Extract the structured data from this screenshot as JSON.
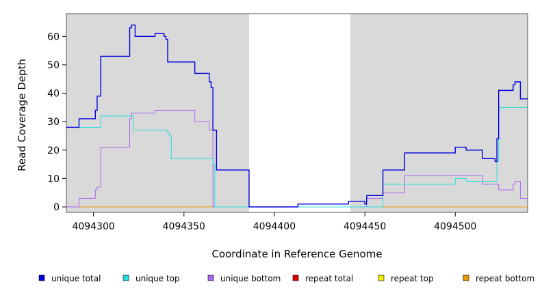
{
  "chart_data": {
    "type": "line",
    "title": "",
    "xlabel": "Coordinate in Reference Genome",
    "ylabel": "Read Coverage Depth",
    "xlim": [
      4094285,
      4094540
    ],
    "ylim": [
      0,
      68
    ],
    "x_ticks": [
      4094300,
      4094350,
      4094400,
      4094450,
      4094500
    ],
    "y_ticks": [
      0,
      10,
      20,
      30,
      40,
      50,
      60
    ],
    "shaded_regions": [
      [
        4094285,
        4094386
      ],
      [
        4094442,
        4094540
      ]
    ],
    "grid": false,
    "legend_position": "bottom",
    "series": [
      {
        "name": "unique total",
        "color": "#0000dd",
        "x": [
          4094285,
          4094292,
          4094301,
          4094302,
          4094304,
          4094320,
          4094321,
          4094323,
          4094334,
          4094339,
          4094340,
          4094341,
          4094356,
          4094364,
          4094365,
          4094366,
          4094368,
          4094386,
          4094413,
          4094441,
          4094450,
          4094451,
          4094460,
          4094472,
          4094500,
          4094506,
          4094515,
          4094522,
          4094523,
          4094524,
          4094532,
          4094533,
          4094536,
          4094540
        ],
        "y": [
          28,
          31,
          34,
          39,
          53,
          63,
          64,
          60,
          61,
          60,
          59,
          51,
          47,
          44,
          42,
          27,
          13,
          0,
          1,
          2,
          1,
          4,
          13,
          19,
          21,
          20,
          17,
          16,
          24,
          41,
          43,
          44,
          38,
          38
        ]
      },
      {
        "name": "unique top",
        "color": "#22dddd",
        "x": [
          4094285,
          4094292,
          4094304,
          4094322,
          4094341,
          4094342,
          4094343,
          4094363,
          4094366,
          4094367,
          4094386,
          4094413,
          4094441,
          4094450,
          4094451,
          4094460,
          4094500,
          4094506,
          4094515,
          4094522,
          4094523,
          4094524,
          4094540
        ],
        "y": [
          28,
          28,
          32,
          27,
          26,
          25,
          17,
          17,
          15,
          0,
          0,
          0,
          0,
          0,
          0,
          8,
          10,
          9,
          9,
          9,
          16,
          35,
          35
        ]
      },
      {
        "name": "unique bottom",
        "color": "#aa66ee",
        "x": [
          4094285,
          4094292,
          4094301,
          4094302,
          4094304,
          4094320,
          4094321,
          4094334,
          4094356,
          4094364,
          4094366,
          4094386,
          4094413,
          4094441,
          4094450,
          4094451,
          4094460,
          4094472,
          4094500,
          4094515,
          4094524,
          4094532,
          4094533,
          4094536,
          4094540
        ],
        "y": [
          0,
          3,
          6,
          7,
          21,
          31,
          33,
          34,
          30,
          27,
          0,
          0,
          0,
          0,
          0,
          3,
          5,
          11,
          11,
          8,
          6,
          8,
          9,
          3,
          3
        ]
      },
      {
        "name": "repeat total",
        "color": "#dd0000",
        "x": [
          4094285,
          4094540
        ],
        "y": [
          0,
          0
        ]
      },
      {
        "name": "repeat top",
        "color": "#eeee00",
        "x": [
          4094285,
          4094540
        ],
        "y": [
          0,
          0
        ]
      },
      {
        "name": "repeat bottom",
        "color": "#ee9900",
        "x": [
          4094285,
          4094540
        ],
        "y": [
          0,
          0
        ]
      }
    ]
  }
}
